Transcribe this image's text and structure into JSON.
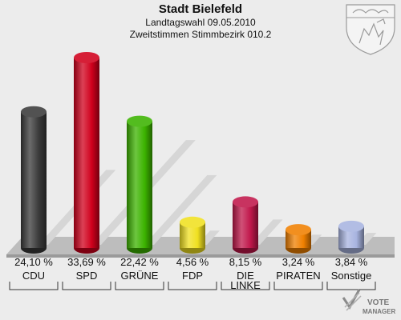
{
  "header": {
    "title": "Stadt Bielefeld",
    "subtitle_line1": "Landtagswahl 09.05.2010",
    "subtitle_line2": "Zweitstimmen Stimmbezirk 010.2"
  },
  "watermark": {
    "text_line1": "VOTE",
    "text_line2": "MANAGER"
  },
  "chart_data": {
    "type": "bar",
    "categories": [
      "CDU",
      "SPD",
      "GRÜNE",
      "FDP",
      "DIE LINKE",
      "PIRATEN",
      "Sonstige"
    ],
    "category_label_lines": [
      [
        "CDU"
      ],
      [
        "SPD"
      ],
      [
        "GRÜNE"
      ],
      [
        "FDP"
      ],
      [
        "DIE",
        "LINKE"
      ],
      [
        "PIRATEN"
      ],
      [
        "Sonstige"
      ]
    ],
    "values": [
      24.1,
      33.69,
      22.42,
      4.56,
      8.15,
      3.24,
      3.84
    ],
    "value_labels": [
      "24,10 %",
      "33,69 %",
      "22,42 %",
      "4,56 %",
      "8,15 %",
      "3,24 %",
      "3,84 %"
    ],
    "colors": [
      "#3a3a3a",
      "#d0001c",
      "#3cb300",
      "#f0e020",
      "#c0174a",
      "#f08000",
      "#a8b4e0"
    ],
    "unit": "%",
    "title": "Stadt Bielefeld",
    "xlabel": "",
    "ylabel": "",
    "legend": "none",
    "grid": false
  }
}
